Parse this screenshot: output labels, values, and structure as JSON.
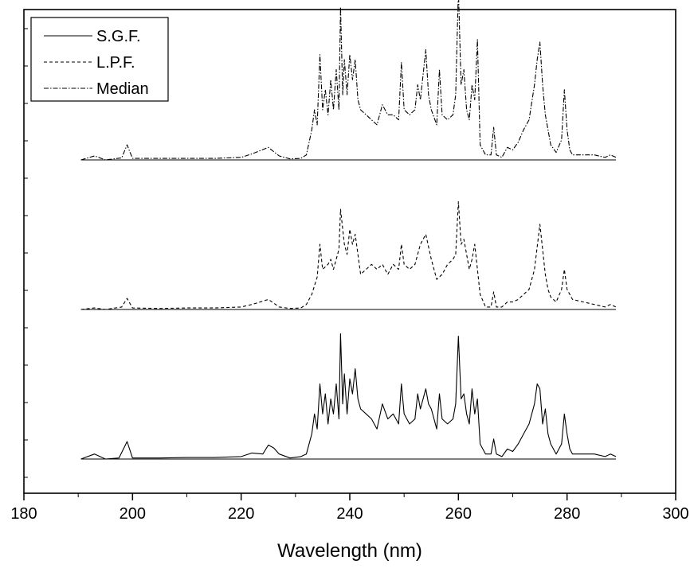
{
  "chart_data": {
    "type": "line",
    "title": "",
    "xlabel": "Wavelength (nm)",
    "ylabel": "",
    "xlim": [
      180,
      300
    ],
    "x_ticks": [
      180,
      200,
      220,
      240,
      260,
      280,
      300
    ],
    "x_tick_labels": [
      "180",
      "200",
      "220",
      "240",
      "260",
      "280",
      "300"
    ],
    "y_tick_labels": [],
    "grid": false,
    "legend": {
      "placement": "top-left",
      "entries": [
        "S.G.F.",
        "L.P.F.",
        "Median"
      ]
    },
    "series": [
      {
        "name": "S.G.F.",
        "line_style": "solid",
        "offset": 0,
        "points": [
          [
            190.5,
            0
          ],
          [
            193,
            0.1
          ],
          [
            195,
            0
          ],
          [
            197.5,
            0.02
          ],
          [
            199,
            0.35
          ],
          [
            200,
            0.02
          ],
          [
            205,
            0.02
          ],
          [
            210,
            0.03
          ],
          [
            215,
            0.03
          ],
          [
            220,
            0.05
          ],
          [
            222,
            0.12
          ],
          [
            224,
            0.1
          ],
          [
            225,
            0.28
          ],
          [
            226,
            0.22
          ],
          [
            227,
            0.1
          ],
          [
            229,
            0.02
          ],
          [
            231,
            0.05
          ],
          [
            232,
            0.1
          ],
          [
            233,
            0.5
          ],
          [
            233.5,
            0.9
          ],
          [
            234,
            0.6
          ],
          [
            234.5,
            1.5
          ],
          [
            235,
            0.9
          ],
          [
            235.5,
            1.3
          ],
          [
            236,
            0.7
          ],
          [
            236.5,
            1.2
          ],
          [
            237,
            0.9
          ],
          [
            237.5,
            1.5
          ],
          [
            238,
            0.8
          ],
          [
            238.3,
            2.5
          ],
          [
            238.7,
            1.1
          ],
          [
            239,
            1.7
          ],
          [
            239.5,
            0.9
          ],
          [
            240,
            1.6
          ],
          [
            240.5,
            1.3
          ],
          [
            241,
            1.8
          ],
          [
            241.5,
            1.2
          ],
          [
            242,
            1.0
          ],
          [
            243,
            0.9
          ],
          [
            244,
            0.8
          ],
          [
            245,
            0.6
          ],
          [
            246,
            1.1
          ],
          [
            247,
            0.8
          ],
          [
            248,
            0.9
          ],
          [
            249,
            0.7
          ],
          [
            249.5,
            1.5
          ],
          [
            250,
            0.9
          ],
          [
            251,
            0.7
          ],
          [
            252,
            0.8
          ],
          [
            252.5,
            1.3
          ],
          [
            253,
            1.0
          ],
          [
            254,
            1.4
          ],
          [
            254.5,
            1.1
          ],
          [
            255,
            1.0
          ],
          [
            256,
            0.6
          ],
          [
            256.5,
            1.3
          ],
          [
            257,
            0.8
          ],
          [
            258,
            0.7
          ],
          [
            259,
            0.8
          ],
          [
            259.5,
            1.1
          ],
          [
            260,
            2.45
          ],
          [
            260.5,
            1.2
          ],
          [
            261,
            1.3
          ],
          [
            261.5,
            0.9
          ],
          [
            262,
            0.7
          ],
          [
            262.5,
            1.4
          ],
          [
            263,
            0.9
          ],
          [
            263.5,
            1.2
          ],
          [
            264,
            0.3
          ],
          [
            265,
            0.1
          ],
          [
            266,
            0.1
          ],
          [
            266.5,
            0.4
          ],
          [
            267,
            0.1
          ],
          [
            268,
            0.05
          ],
          [
            269,
            0.2
          ],
          [
            270,
            0.15
          ],
          [
            271,
            0.3
          ],
          [
            272,
            0.5
          ],
          [
            273,
            0.7
          ],
          [
            274,
            1.1
          ],
          [
            274.5,
            1.5
          ],
          [
            275,
            1.4
          ],
          [
            275.5,
            0.7
          ],
          [
            276,
            1.0
          ],
          [
            276.5,
            0.5
          ],
          [
            277,
            0.3
          ],
          [
            278,
            0.1
          ],
          [
            279,
            0.3
          ],
          [
            279.5,
            0.9
          ],
          [
            280,
            0.5
          ],
          [
            280.5,
            0.2
          ],
          [
            281,
            0.1
          ],
          [
            283,
            0.1
          ],
          [
            285,
            0.1
          ],
          [
            287,
            0.05
          ],
          [
            288,
            0.1
          ],
          [
            289,
            0.05
          ]
        ]
      },
      {
        "name": "L.P.F.",
        "line_style": "dashed",
        "offset": 1,
        "points": [
          [
            190.5,
            0
          ],
          [
            193,
            0.03
          ],
          [
            195,
            0
          ],
          [
            198,
            0.05
          ],
          [
            199,
            0.22
          ],
          [
            200,
            0.03
          ],
          [
            205,
            0.02
          ],
          [
            210,
            0.03
          ],
          [
            215,
            0.03
          ],
          [
            220,
            0.05
          ],
          [
            222,
            0.1
          ],
          [
            225,
            0.2
          ],
          [
            227,
            0.05
          ],
          [
            229,
            0.02
          ],
          [
            231,
            0.03
          ],
          [
            232,
            0.1
          ],
          [
            233,
            0.3
          ],
          [
            234,
            0.65
          ],
          [
            234.5,
            1.3
          ],
          [
            235,
            0.8
          ],
          [
            236,
            0.9
          ],
          [
            236.5,
            1.0
          ],
          [
            237,
            0.8
          ],
          [
            238,
            1.2
          ],
          [
            238.3,
            2.0
          ],
          [
            239,
            1.3
          ],
          [
            239.5,
            1.1
          ],
          [
            240,
            1.6
          ],
          [
            240.5,
            1.3
          ],
          [
            241,
            1.5
          ],
          [
            242,
            0.7
          ],
          [
            243,
            0.8
          ],
          [
            244,
            0.9
          ],
          [
            245,
            0.8
          ],
          [
            246,
            0.9
          ],
          [
            247,
            0.7
          ],
          [
            248,
            0.9
          ],
          [
            249,
            0.8
          ],
          [
            249.5,
            1.3
          ],
          [
            250,
            0.9
          ],
          [
            251,
            0.8
          ],
          [
            252,
            0.9
          ],
          [
            253,
            1.3
          ],
          [
            254,
            1.5
          ],
          [
            255,
            1.0
          ],
          [
            256,
            0.6
          ],
          [
            257,
            0.7
          ],
          [
            258,
            0.9
          ],
          [
            259,
            1.0
          ],
          [
            259.5,
            1.1
          ],
          [
            260,
            2.15
          ],
          [
            260.5,
            1.3
          ],
          [
            261,
            1.4
          ],
          [
            262,
            0.8
          ],
          [
            262.5,
            1.0
          ],
          [
            263,
            1.3
          ],
          [
            264,
            0.3
          ],
          [
            265,
            0.05
          ],
          [
            266,
            0.05
          ],
          [
            266.5,
            0.35
          ],
          [
            267,
            0.05
          ],
          [
            268,
            0.05
          ],
          [
            269,
            0.15
          ],
          [
            270,
            0.15
          ],
          [
            271,
            0.2
          ],
          [
            272,
            0.3
          ],
          [
            273,
            0.4
          ],
          [
            274,
            0.8
          ],
          [
            275,
            1.7
          ],
          [
            275.5,
            1.2
          ],
          [
            276,
            0.7
          ],
          [
            276.5,
            0.4
          ],
          [
            277,
            0.25
          ],
          [
            278,
            0.15
          ],
          [
            279,
            0.4
          ],
          [
            279.5,
            0.8
          ],
          [
            280,
            0.4
          ],
          [
            281,
            0.2
          ],
          [
            283,
            0.15
          ],
          [
            285,
            0.1
          ],
          [
            287,
            0.05
          ],
          [
            288,
            0.1
          ],
          [
            289,
            0.05
          ]
        ]
      },
      {
        "name": "Median",
        "line_style": "dash-dot",
        "offset": 2,
        "points": [
          [
            190.5,
            0
          ],
          [
            193,
            0.08
          ],
          [
            195,
            0
          ],
          [
            198,
            0.04
          ],
          [
            199,
            0.3
          ],
          [
            200,
            0.03
          ],
          [
            205,
            0.03
          ],
          [
            210,
            0.03
          ],
          [
            215,
            0.03
          ],
          [
            220,
            0.05
          ],
          [
            222,
            0.12
          ],
          [
            225,
            0.25
          ],
          [
            227,
            0.08
          ],
          [
            229,
            0.02
          ],
          [
            231,
            0.03
          ],
          [
            232,
            0.1
          ],
          [
            233,
            0.6
          ],
          [
            233.5,
            1.0
          ],
          [
            234,
            0.7
          ],
          [
            234.5,
            2.1
          ],
          [
            235,
            1.0
          ],
          [
            235.5,
            1.4
          ],
          [
            236,
            0.9
          ],
          [
            236.5,
            1.6
          ],
          [
            237,
            1.0
          ],
          [
            237.5,
            1.8
          ],
          [
            238,
            1.0
          ],
          [
            238.3,
            3.05
          ],
          [
            238.7,
            1.3
          ],
          [
            239,
            2.0
          ],
          [
            239.5,
            1.3
          ],
          [
            240,
            2.1
          ],
          [
            240.5,
            1.6
          ],
          [
            241,
            2.0
          ],
          [
            241.5,
            1.2
          ],
          [
            242,
            1.0
          ],
          [
            243,
            0.9
          ],
          [
            244,
            0.8
          ],
          [
            245,
            0.7
          ],
          [
            246,
            1.1
          ],
          [
            247,
            0.9
          ],
          [
            248,
            0.9
          ],
          [
            249,
            0.8
          ],
          [
            249.5,
            1.95
          ],
          [
            250,
            1.0
          ],
          [
            251,
            0.9
          ],
          [
            252,
            1.0
          ],
          [
            252.5,
            1.5
          ],
          [
            253,
            1.2
          ],
          [
            254,
            2.2
          ],
          [
            254.5,
            1.3
          ],
          [
            255,
            1.0
          ],
          [
            256,
            0.7
          ],
          [
            256.5,
            1.8
          ],
          [
            257,
            0.9
          ],
          [
            258,
            0.8
          ],
          [
            259,
            0.9
          ],
          [
            259.5,
            1.3
          ],
          [
            260,
            3.4
          ],
          [
            260.5,
            1.5
          ],
          [
            261,
            1.8
          ],
          [
            261.5,
            1.0
          ],
          [
            262,
            0.8
          ],
          [
            262.5,
            1.5
          ],
          [
            263,
            1.2
          ],
          [
            263.5,
            2.4
          ],
          [
            264,
            0.3
          ],
          [
            265,
            0.1
          ],
          [
            266,
            0.1
          ],
          [
            266.5,
            0.65
          ],
          [
            267,
            0.1
          ],
          [
            268,
            0.05
          ],
          [
            269,
            0.25
          ],
          [
            270,
            0.2
          ],
          [
            271,
            0.35
          ],
          [
            272,
            0.6
          ],
          [
            273,
            0.8
          ],
          [
            274,
            1.5
          ],
          [
            274.5,
            2.0
          ],
          [
            275,
            2.35
          ],
          [
            275.5,
            1.5
          ],
          [
            276,
            0.9
          ],
          [
            276.5,
            0.6
          ],
          [
            277,
            0.3
          ],
          [
            278,
            0.15
          ],
          [
            279,
            0.4
          ],
          [
            279.5,
            1.4
          ],
          [
            280,
            0.6
          ],
          [
            280.5,
            0.2
          ],
          [
            281,
            0.1
          ],
          [
            283,
            0.1
          ],
          [
            285,
            0.1
          ],
          [
            287,
            0.05
          ],
          [
            288,
            0.1
          ],
          [
            289,
            0.05
          ]
        ]
      }
    ]
  }
}
